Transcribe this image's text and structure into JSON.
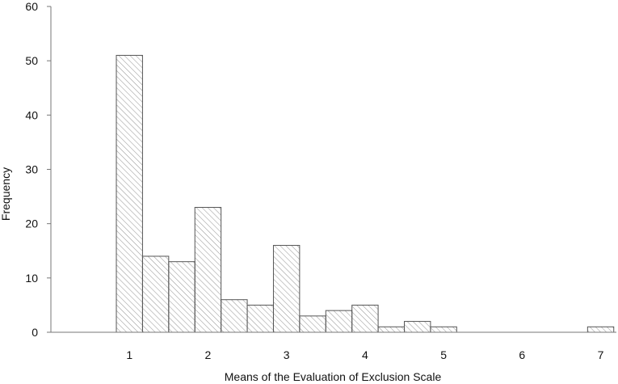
{
  "chart_data": {
    "type": "bar",
    "xlabel": "Means of the Evaluation of Exclusion Scale",
    "ylabel": "Frequency",
    "ylim": [
      0,
      60
    ],
    "yticks": [
      0,
      10,
      20,
      30,
      40,
      50,
      60
    ],
    "xlim": [
      0,
      7.2
    ],
    "xticks": [
      "1",
      "2",
      "3",
      "4",
      "5",
      "6",
      "7"
    ],
    "bin_width": 0.3333,
    "grid": false,
    "bars": [
      {
        "start": 0.8333,
        "value": 51
      },
      {
        "start": 1.1667,
        "value": 14
      },
      {
        "start": 1.5,
        "value": 13
      },
      {
        "start": 1.8333,
        "value": 23
      },
      {
        "start": 2.1667,
        "value": 6
      },
      {
        "start": 2.5,
        "value": 5
      },
      {
        "start": 2.8333,
        "value": 16
      },
      {
        "start": 3.1667,
        "value": 3
      },
      {
        "start": 3.5,
        "value": 4
      },
      {
        "start": 3.8333,
        "value": 5
      },
      {
        "start": 4.1667,
        "value": 1
      },
      {
        "start": 4.5,
        "value": 2
      },
      {
        "start": 4.8333,
        "value": 1
      },
      {
        "start": 6.8333,
        "value": 1
      }
    ],
    "bar_fill": "hatched",
    "bar_stroke": "#555555",
    "hatch_color": "#9a9a9a"
  }
}
